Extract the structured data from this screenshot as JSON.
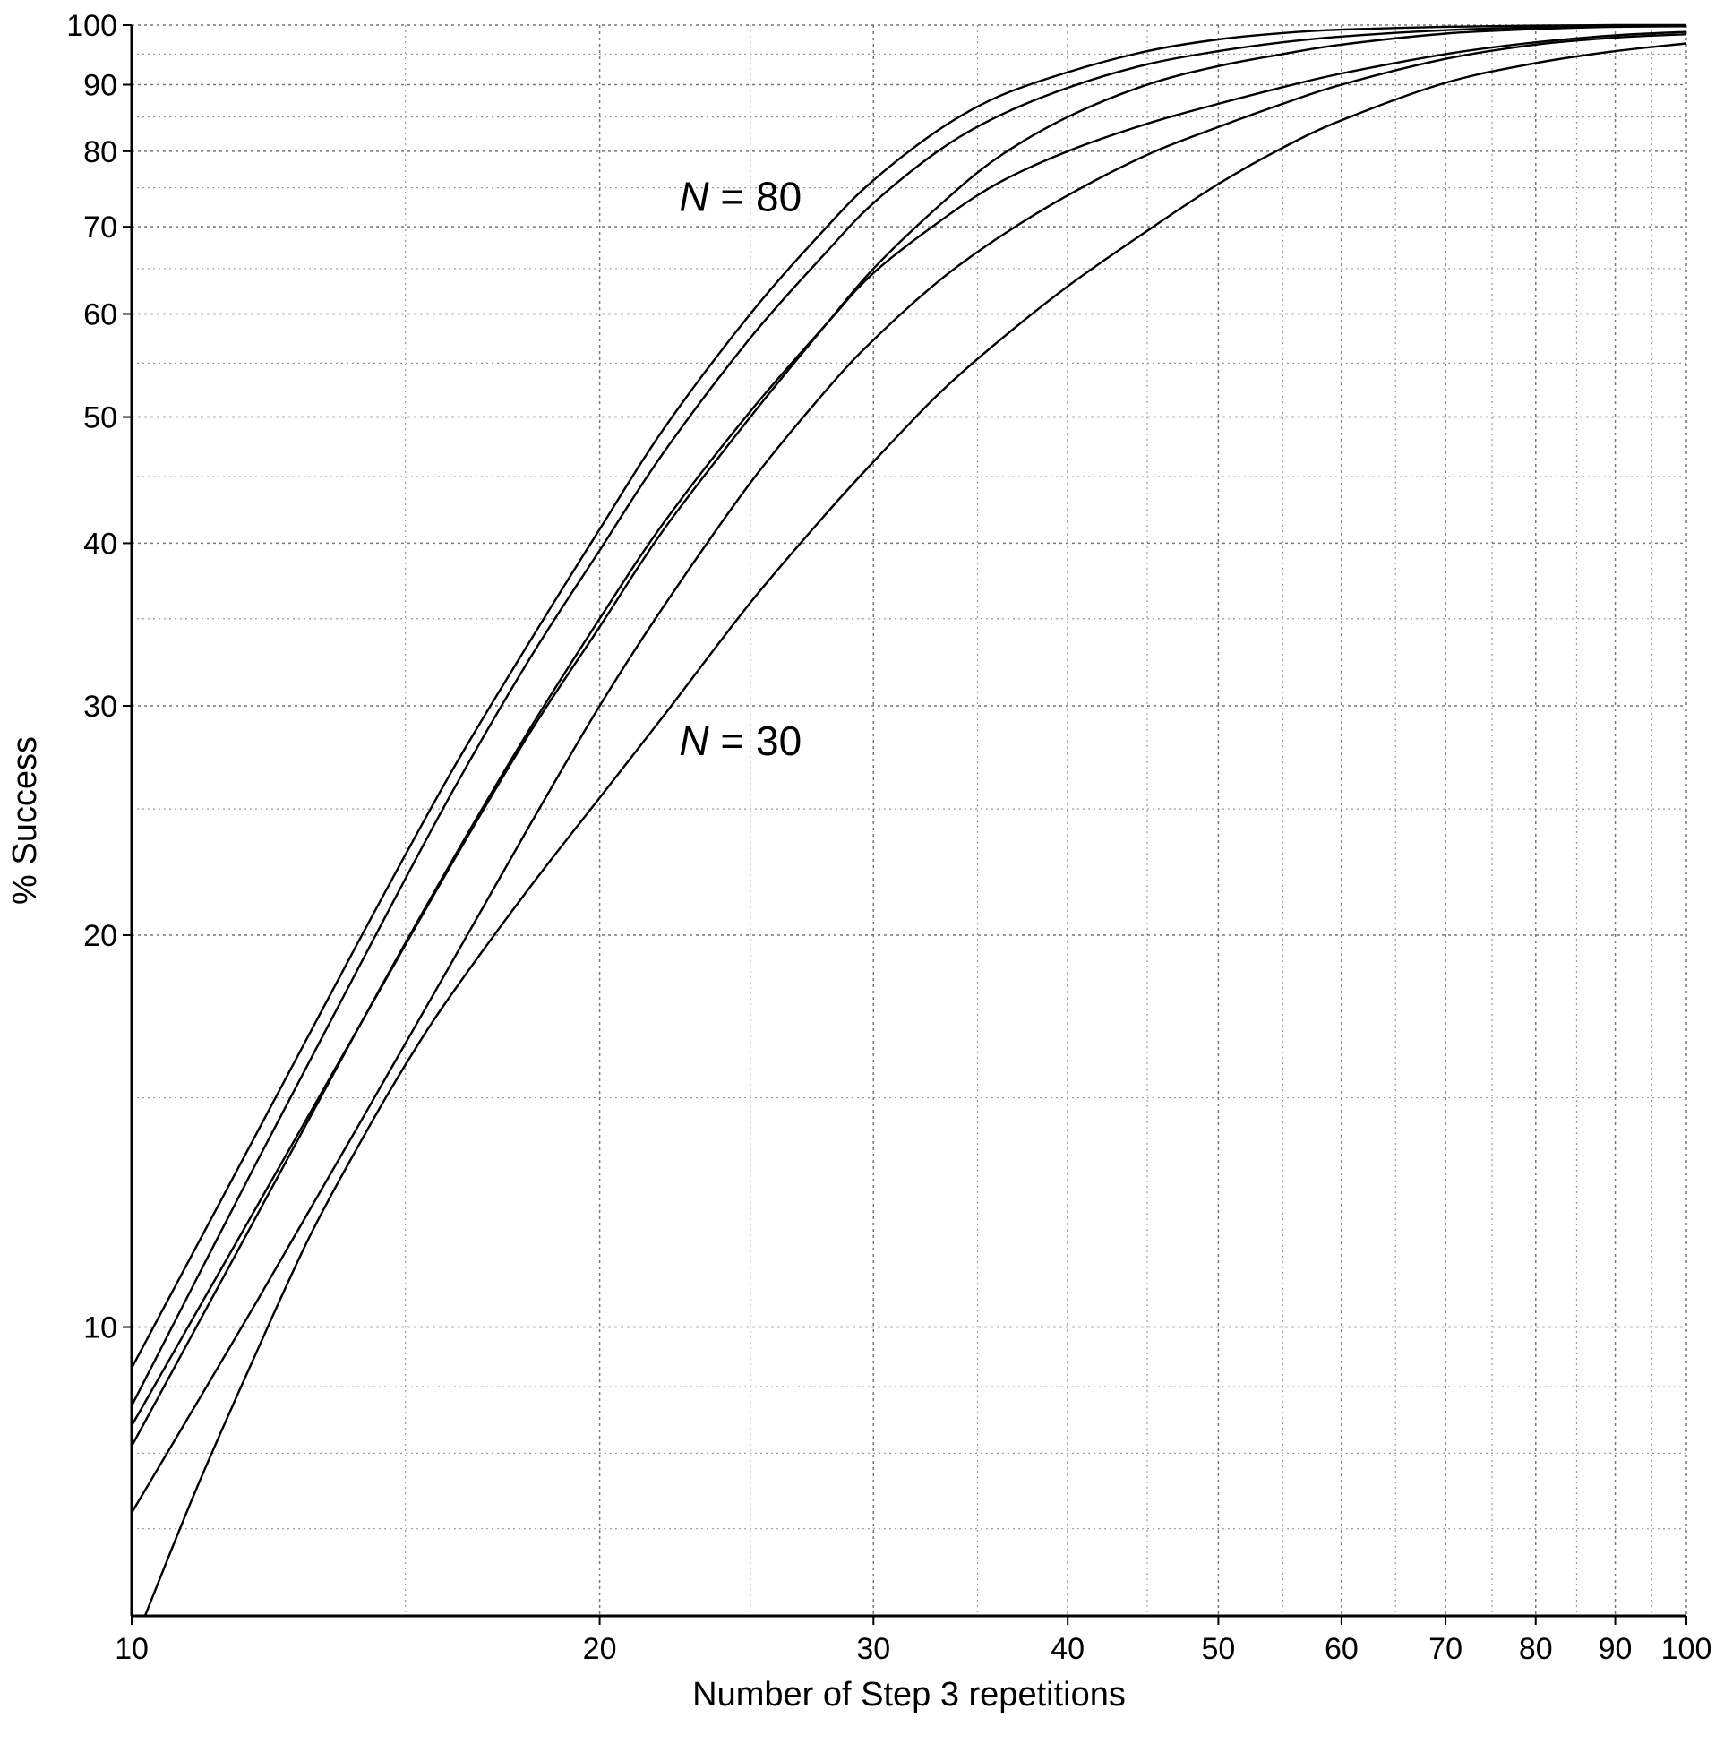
{
  "chart_data": {
    "type": "line",
    "xlabel": "Number of Step 3 repetitions",
    "ylabel": "% Success",
    "x_scale": "log",
    "y_scale": "log",
    "xlim": [
      10,
      100
    ],
    "ylim": [
      6,
      100
    ],
    "x_ticks": [
      10,
      20,
      30,
      40,
      50,
      60,
      70,
      80,
      90,
      100
    ],
    "x_tick_labels": [
      "10",
      "20",
      "30",
      "40",
      "50",
      "60",
      "70",
      "80",
      "90",
      "100"
    ],
    "y_ticks": [
      10,
      20,
      30,
      40,
      50,
      60,
      70,
      80,
      90,
      100
    ],
    "y_tick_labels": [
      "10",
      "20",
      "30",
      "40",
      "50",
      "60",
      "70",
      "80",
      "90",
      "100"
    ],
    "grid": true,
    "line_color": "#000000",
    "grid_color": "#9a9a9a",
    "annotations": [
      {
        "text": "N = 80",
        "variable": "N",
        "value": "80",
        "x": 22.5,
        "y": 72
      },
      {
        "text": "N = 30",
        "variable": "N",
        "value": "30",
        "x": 22.5,
        "y": 27.5
      }
    ],
    "series": [
      {
        "x": [
          10,
          12,
          14,
          16,
          18,
          20,
          22,
          25,
          28,
          30,
          33,
          36,
          40,
          45,
          50,
          55,
          60,
          70,
          80,
          90,
          100
        ],
        "values": [
          9.3,
          14,
          19.8,
          26.5,
          33.5,
          41,
          49,
          60,
          70,
          76,
          83,
          88,
          92,
          95.5,
          97.5,
          98.6,
          99.2,
          99.7,
          99.9,
          100,
          100
        ]
      },
      {
        "x": [
          10,
          12,
          14,
          16,
          18,
          20,
          22,
          25,
          28,
          30,
          33,
          36,
          40,
          45,
          50,
          55,
          60,
          70,
          80,
          90,
          100
        ],
        "values": [
          8.7,
          13.3,
          18.9,
          25.5,
          32.5,
          39.5,
          47,
          57.5,
          67,
          73,
          80,
          85,
          89.5,
          93.3,
          95.5,
          97,
          98,
          99.1,
          99.6,
          99.8,
          99.9
        ]
      },
      {
        "x": [
          10,
          12,
          14,
          16,
          18,
          20,
          22,
          25,
          28,
          30,
          33,
          36,
          40,
          45,
          50,
          55,
          60,
          70,
          80,
          90,
          100
        ],
        "values": [
          8.4,
          12.3,
          17,
          22.5,
          28.5,
          34.5,
          41,
          50,
          59,
          65,
          72.5,
          79,
          85,
          90,
          93,
          95,
          96.6,
          98.5,
          99.3,
          99.7,
          99.8
        ]
      },
      {
        "x": [
          10,
          12,
          14,
          16,
          18,
          20,
          22,
          25,
          28,
          30,
          33,
          36,
          40,
          45,
          50,
          55,
          60,
          70,
          80,
          90,
          100
        ],
        "values": [
          8.1,
          12.1,
          17,
          22.6,
          28.7,
          35,
          41.5,
          50.5,
          59,
          64.5,
          70.5,
          75.5,
          80,
          84,
          87,
          89.6,
          91.8,
          95,
          97,
          98.2,
          98.8
        ]
      },
      {
        "x": [
          10,
          12,
          14,
          16,
          18,
          20,
          22,
          25,
          28,
          30,
          33,
          36,
          40,
          45,
          50,
          55,
          60,
          70,
          80,
          90,
          100
        ],
        "values": [
          7.2,
          10.4,
          14.3,
          18.9,
          24.2,
          30,
          35.8,
          44.5,
          52.5,
          57.3,
          63.5,
          68.5,
          74,
          79.5,
          83.5,
          87,
          90,
          94.2,
          96.6,
          97.8,
          98.4
        ]
      },
      {
        "x": [
          10.2,
          11,
          12,
          13,
          14,
          15,
          16,
          18,
          20,
          22,
          25,
          28,
          30,
          33,
          36,
          40,
          45,
          50,
          55,
          60,
          70,
          80,
          90,
          100
        ],
        "values": [
          6,
          7.5,
          9.5,
          11.7,
          13.8,
          15.9,
          17.9,
          21.7,
          25.5,
          29.5,
          36,
          42.2,
          46.2,
          52,
          57,
          63,
          69.5,
          75.5,
          80.5,
          84.5,
          90.3,
          93.5,
          95.5,
          96.8
        ]
      }
    ]
  }
}
